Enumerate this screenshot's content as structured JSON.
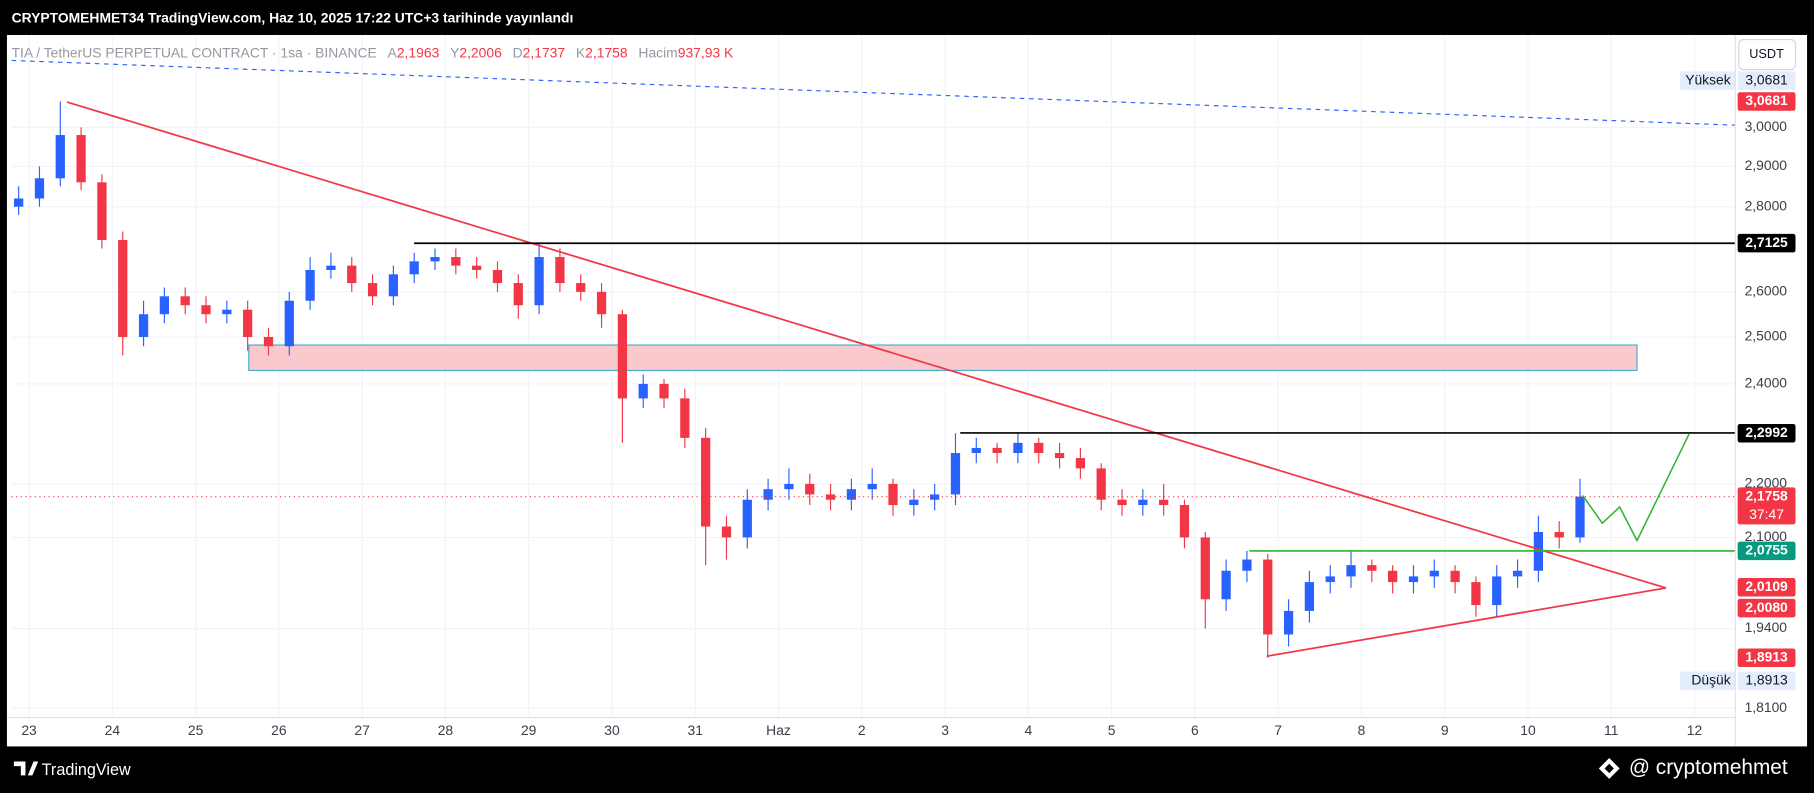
{
  "header": {
    "published": "CRYPTOMEHMET34 TradingView.com, Haz 10, 2025 17:22 UTC+3 tarihinde yayınlandı",
    "symbol": "TIA / TetherUS PERPETUAL CONTRACT · 1sa · BINANCE",
    "ohlc": [
      {
        "key": "A",
        "value": "2,1963"
      },
      {
        "key": "Y",
        "value": "2,2006"
      },
      {
        "key": "D",
        "value": "2,1737"
      },
      {
        "key": "K",
        "value": "2,1758"
      }
    ],
    "volume": {
      "key": "Hacim",
      "value": "937,93 K"
    },
    "currency": "USDT"
  },
  "chart_data": {
    "type": "candlestick",
    "x": [
      -0.125,
      0.125,
      0.375,
      0.625,
      0.875,
      1.125,
      1.375,
      1.625,
      1.875,
      2.125,
      2.375,
      2.625,
      2.875,
      3.125,
      3.375,
      3.625,
      3.875,
      4.125,
      4.375,
      4.625,
      4.875,
      5.125,
      5.375,
      5.625,
      5.875,
      6.125,
      6.375,
      6.625,
      6.875,
      7.125,
      7.375,
      7.625,
      7.875,
      8.125,
      8.375,
      8.625,
      8.875,
      9.125,
      9.375,
      9.625,
      9.875,
      10.125,
      10.375,
      10.625,
      10.875,
      11.125,
      11.375,
      11.625,
      11.875,
      12.125,
      12.375,
      12.625,
      12.875,
      13.125,
      13.375,
      13.625,
      13.875,
      14.125,
      14.375,
      14.625,
      14.875,
      15.125,
      15.375,
      15.625,
      15.875,
      16.125,
      16.375,
      16.625,
      16.875,
      17.125,
      17.375,
      17.625,
      17.875,
      18.125,
      18.375,
      18.625
    ],
    "open": [
      2.8,
      2.82,
      2.87,
      2.98,
      2.86,
      2.72,
      2.5,
      2.55,
      2.59,
      2.57,
      2.55,
      2.56,
      2.5,
      2.48,
      2.58,
      2.65,
      2.66,
      2.62,
      2.59,
      2.64,
      2.67,
      2.68,
      2.66,
      2.65,
      2.62,
      2.57,
      2.68,
      2.62,
      2.6,
      2.55,
      2.37,
      2.4,
      2.37,
      2.29,
      2.12,
      2.1,
      2.17,
      2.19,
      2.2,
      2.18,
      2.17,
      2.19,
      2.2,
      2.16,
      2.17,
      2.18,
      2.26,
      2.27,
      2.26,
      2.28,
      2.26,
      2.25,
      2.23,
      2.17,
      2.16,
      2.17,
      2.16,
      2.1,
      1.99,
      2.04,
      2.06,
      1.93,
      1.97,
      2.02,
      2.03,
      2.05,
      2.04,
      2.02,
      2.03,
      2.04,
      2.02,
      1.98,
      2.03,
      2.04,
      2.11,
      2.1
    ],
    "high": [
      2.85,
      2.9,
      3.0681,
      3.0,
      2.88,
      2.74,
      2.58,
      2.61,
      2.61,
      2.59,
      2.58,
      2.58,
      2.52,
      2.6,
      2.68,
      2.69,
      2.68,
      2.64,
      2.66,
      2.69,
      2.7,
      2.7,
      2.68,
      2.67,
      2.64,
      2.7125,
      2.7,
      2.64,
      2.62,
      2.56,
      2.42,
      2.41,
      2.39,
      2.31,
      2.14,
      2.19,
      2.21,
      2.23,
      2.22,
      2.2,
      2.21,
      2.23,
      2.21,
      2.19,
      2.2,
      2.2992,
      2.29,
      2.28,
      2.2992,
      2.29,
      2.28,
      2.27,
      2.24,
      2.19,
      2.19,
      2.2,
      2.17,
      2.11,
      2.06,
      2.0755,
      2.07,
      1.99,
      2.04,
      2.05,
      2.0755,
      2.06,
      2.05,
      2.05,
      2.06,
      2.05,
      2.03,
      2.05,
      2.06,
      2.14,
      2.13,
      2.21
    ],
    "low": [
      2.78,
      2.8,
      2.85,
      2.84,
      2.7,
      2.46,
      2.48,
      2.53,
      2.55,
      2.53,
      2.53,
      2.47,
      2.46,
      2.46,
      2.56,
      2.63,
      2.6,
      2.57,
      2.57,
      2.62,
      2.65,
      2.64,
      2.63,
      2.6,
      2.54,
      2.55,
      2.6,
      2.58,
      2.52,
      2.28,
      2.35,
      2.35,
      2.27,
      2.05,
      2.06,
      2.08,
      2.15,
      2.17,
      2.16,
      2.15,
      2.15,
      2.17,
      2.14,
      2.14,
      2.15,
      2.16,
      2.24,
      2.24,
      2.24,
      2.24,
      2.23,
      2.21,
      2.15,
      2.14,
      2.14,
      2.14,
      2.08,
      1.94,
      1.97,
      2.02,
      1.8913,
      1.91,
      1.95,
      2.0,
      2.01,
      2.02,
      2.0,
      2.0,
      2.01,
      2.0,
      1.96,
      1.96,
      2.01,
      2.02,
      2.08,
      2.09
    ],
    "close": [
      2.82,
      2.87,
      2.98,
      2.86,
      2.72,
      2.5,
      2.55,
      2.59,
      2.57,
      2.55,
      2.56,
      2.5,
      2.48,
      2.58,
      2.65,
      2.66,
      2.62,
      2.59,
      2.64,
      2.67,
      2.68,
      2.66,
      2.65,
      2.62,
      2.57,
      2.68,
      2.62,
      2.6,
      2.55,
      2.37,
      2.4,
      2.37,
      2.29,
      2.12,
      2.1,
      2.17,
      2.19,
      2.2,
      2.18,
      2.17,
      2.19,
      2.2,
      2.16,
      2.17,
      2.18,
      2.26,
      2.27,
      2.26,
      2.28,
      2.26,
      2.25,
      2.23,
      2.17,
      2.16,
      2.17,
      2.16,
      2.1,
      1.99,
      2.04,
      2.06,
      1.93,
      1.97,
      2.02,
      2.03,
      2.05,
      2.04,
      2.02,
      2.03,
      2.04,
      2.02,
      1.98,
      2.03,
      2.04,
      2.11,
      2.1,
      2.1758
    ],
    "colors": {
      "up": "#2962ff",
      "down": "#f23645"
    },
    "xlim": [
      -0.21,
      20.49
    ],
    "xticks": [
      {
        "value": 0,
        "label": "23"
      },
      {
        "value": 1,
        "label": "24"
      },
      {
        "value": 2,
        "label": "25"
      },
      {
        "value": 3,
        "label": "26"
      },
      {
        "value": 4,
        "label": "27"
      },
      {
        "value": 5,
        "label": "28"
      },
      {
        "value": 6,
        "label": "29"
      },
      {
        "value": 7,
        "label": "30"
      },
      {
        "value": 8,
        "label": "31"
      },
      {
        "value": 9,
        "label": "Haz"
      },
      {
        "value": 10,
        "label": "2"
      },
      {
        "value": 11,
        "label": "3"
      },
      {
        "value": 12,
        "label": "4"
      },
      {
        "value": 13,
        "label": "5"
      },
      {
        "value": 14,
        "label": "6"
      },
      {
        "value": 15,
        "label": "7"
      },
      {
        "value": 16,
        "label": "8"
      },
      {
        "value": 17,
        "label": "9"
      },
      {
        "value": 18,
        "label": "10"
      },
      {
        "value": 19,
        "label": "11"
      },
      {
        "value": 20,
        "label": "12"
      }
    ],
    "ylim": [
      1.7955,
      3.251
    ],
    "log_scale": true,
    "grid": true,
    "yticks": [
      {
        "value": 3.0,
        "label": "3,0000"
      },
      {
        "value": 2.9,
        "label": "2,9000"
      },
      {
        "value": 2.8,
        "label": "2,8000"
      },
      {
        "value": 2.6,
        "label": "2,6000"
      },
      {
        "value": 2.5,
        "label": "2,5000"
      },
      {
        "value": 2.4,
        "label": "2,4000"
      },
      {
        "value": 2.2,
        "label": "2,2000"
      },
      {
        "value": 2.1,
        "label": "2,1000"
      },
      {
        "value": 1.94,
        "label": "1,9400"
      },
      {
        "value": 1.81,
        "label": "1,8100"
      }
    ],
    "high_mark": {
      "name": "Yüksek",
      "value": 3.0681,
      "label": "3,0681"
    },
    "low_mark": {
      "name": "Düşük",
      "value": 1.8913,
      "label": "1,8913"
    },
    "last_price": {
      "value": 2.1758,
      "label": "2,1758",
      "countdown": "37:47",
      "color": "#f23645"
    },
    "price_tags": [
      {
        "value": 2.7125,
        "label": "2,7125",
        "color": "#000000"
      },
      {
        "value": 2.2992,
        "label": "2,2992",
        "color": "#000000"
      },
      {
        "value": 2.0755,
        "label": "2,0755",
        "color": "#089981"
      },
      {
        "value": 2.0109,
        "label": "2,0109",
        "color": "#f23645"
      },
      {
        "value": 2.008,
        "label": "2,0080",
        "color": "#f23645"
      }
    ]
  },
  "footer": {
    "brand": "TradingView",
    "watermark": "@ cryptomehmet"
  }
}
